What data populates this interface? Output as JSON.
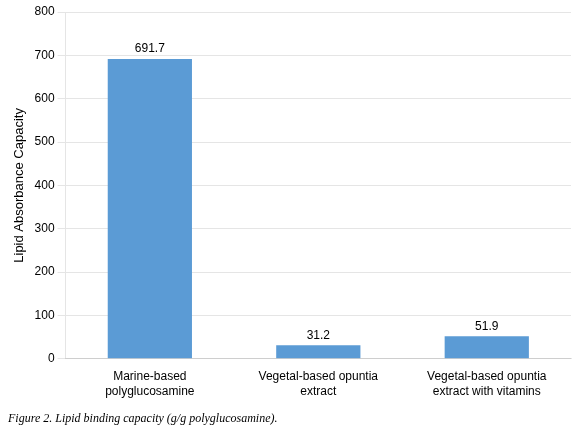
{
  "chart_data": {
    "type": "bar",
    "categories": [
      "Marine-based\npolyglucosamine",
      "Vegetal-based opuntia\nextract",
      "Vegetal-based opuntia\nextract with vitamins"
    ],
    "values": [
      691.7,
      31.2,
      51.9
    ],
    "color": "#5B9BD5",
    "ylabel": "Lipid Absorbance Capacity",
    "caption": "Figure 2. Lipid binding capacity (g/g polyglucosamine).",
    "ylim": [
      0,
      800
    ],
    "yticks": [
      0,
      100,
      200,
      300,
      400,
      500,
      600,
      700,
      800
    ],
    "grid": true,
    "data_labels": true
  }
}
